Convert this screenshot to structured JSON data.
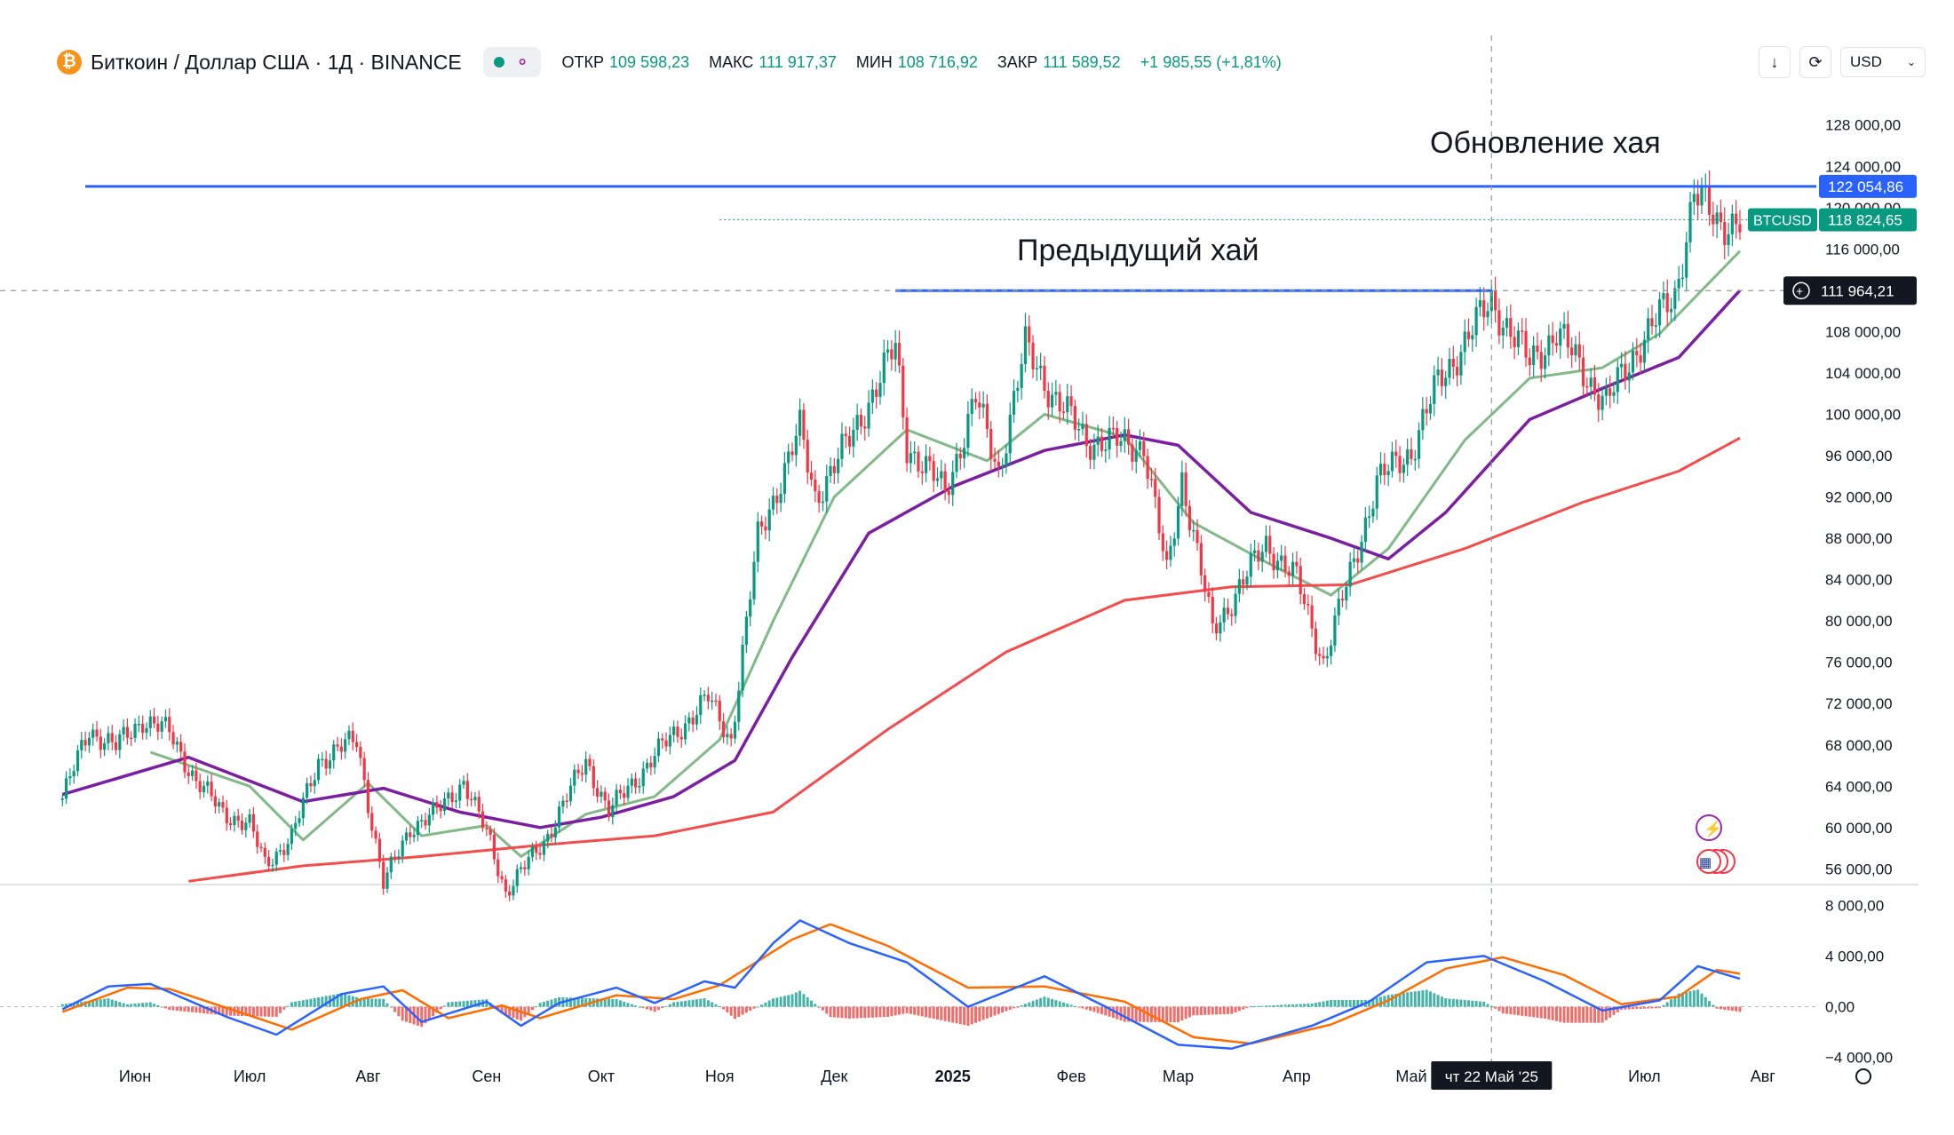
{
  "header": {
    "coin_glyph": "₿",
    "symbol_title": "Биткоин / Доллар США · 1Д · BINANCE",
    "ohlc": [
      {
        "label": "ОТКР",
        "value": "109 598,23"
      },
      {
        "label": "МАКС",
        "value": "111 917,37"
      },
      {
        "label": "МИН",
        "value": "108 716,92"
      },
      {
        "label": "ЗАКР",
        "value": "111 589,52"
      },
      {
        "label": "",
        "value": "+1 985,55 (+1,81%)"
      }
    ],
    "currency": "USD"
  },
  "icons": {
    "coin": "bitcoin-icon",
    "share": "share-icon",
    "download": "arrow-down-icon",
    "fullscreen": "fullscreen-icon",
    "settings": "gear-icon"
  },
  "colors": {
    "up": "#089981",
    "down": "#f23645",
    "ema_fast": "#81b988",
    "ema_mid": "#7b1fa2",
    "ema_slow": "#f44b4b",
    "level_line": "#2962ff",
    "macd_line": "#2962ff",
    "signal_line": "#ff6d00"
  },
  "chart_data": {
    "type": "candlestick",
    "title": "Биткоин / Доллар США · 1Д · BINANCE",
    "annotations": [
      {
        "text": "Обновление хая",
        "level": 122054.86
      },
      {
        "text": "Предыдущий хай",
        "level": 111964.21
      }
    ],
    "price_axis": {
      "ticks": [
        56000,
        60000,
        64000,
        68000,
        72000,
        76000,
        80000,
        84000,
        88000,
        92000,
        96000,
        100000,
        104000,
        108000,
        116000,
        120000,
        124000,
        128000
      ],
      "tick_labels": [
        "56 000,00",
        "60 000,00",
        "64 000,00",
        "68 000,00",
        "72 000,00",
        "76 000,00",
        "80 000,00",
        "84 000,00",
        "88 000,00",
        "92 000,00",
        "96 000,00",
        "100 000,00",
        "104 000,00",
        "108 000,00",
        "116 000,00",
        "120 000,00",
        "124 000,00",
        "128 000,00"
      ],
      "range": [
        55000,
        131500
      ]
    },
    "price_badges": [
      {
        "label": "",
        "value": "122 054,86",
        "level": 122054.86
      },
      {
        "label": "BTCUSD",
        "value": "118 824,65",
        "level": 118824.65
      },
      {
        "label": "",
        "value": "111 964,21",
        "level": 111964.21
      }
    ],
    "time_axis": {
      "labels": [
        "Июн",
        "Июл",
        "Авг",
        "Сен",
        "Окт",
        "Ноя",
        "Дек",
        "2025",
        "Фев",
        "Мар",
        "Апр",
        "Май",
        "Июл",
        "Авг"
      ],
      "dates": [
        "2024-06-01",
        "2024-07-01",
        "2024-08-01",
        "2024-09-01",
        "2024-10-01",
        "2024-11-01",
        "2024-12-01",
        "2025-01-01",
        "2025-02-01",
        "2025-03-01",
        "2025-04-01",
        "2025-05-01",
        "2025-07-01",
        "2025-08-01"
      ],
      "range": [
        "2024-05-12",
        "2025-08-15"
      ],
      "crosshair_label": "чт 22 Май '25",
      "crosshair_date": "2025-05-22"
    },
    "close_series": [
      [
        "2024-05-13",
        62800
      ],
      [
        "2024-05-20",
        69500
      ],
      [
        "2024-05-27",
        67800
      ],
      [
        "2024-06-03",
        70500
      ],
      [
        "2024-06-10",
        69200
      ],
      [
        "2024-06-17",
        64500
      ],
      [
        "2024-06-24",
        61500
      ],
      [
        "2024-07-01",
        60200
      ],
      [
        "2024-07-05",
        56500
      ],
      [
        "2024-07-12",
        59000
      ],
      [
        "2024-07-19",
        66500
      ],
      [
        "2024-07-29",
        68500
      ],
      [
        "2024-08-05",
        54500
      ],
      [
        "2024-08-12",
        60000
      ],
      [
        "2024-08-19",
        61500
      ],
      [
        "2024-08-26",
        64500
      ],
      [
        "2024-09-02",
        58500
      ],
      [
        "2024-09-06",
        53800
      ],
      [
        "2024-09-16",
        58600
      ],
      [
        "2024-09-27",
        66500
      ],
      [
        "2024-10-03",
        61500
      ],
      [
        "2024-10-15",
        67000
      ],
      [
        "2024-10-29",
        72500
      ],
      [
        "2024-11-04",
        68500
      ],
      [
        "2024-11-11",
        88000
      ],
      [
        "2024-11-22",
        98500
      ],
      [
        "2024-11-26",
        92000
      ],
      [
        "2024-12-05",
        97500
      ],
      [
        "2024-12-17",
        106500
      ],
      [
        "2024-12-20",
        97000
      ],
      [
        "2024-12-30",
        92500
      ],
      [
        "2025-01-07",
        101500
      ],
      [
        "2025-01-13",
        94500
      ],
      [
        "2025-01-20",
        106500
      ],
      [
        "2025-01-27",
        102000
      ],
      [
        "2025-02-05",
        97500
      ],
      [
        "2025-02-20",
        97000
      ],
      [
        "2025-02-26",
        84500
      ],
      [
        "2025-03-02",
        94000
      ],
      [
        "2025-03-10",
        79000
      ],
      [
        "2025-03-24",
        87500
      ],
      [
        "2025-04-01",
        84000
      ],
      [
        "2025-04-08",
        76000
      ],
      [
        "2025-04-15",
        84500
      ],
      [
        "2025-04-22",
        93500
      ],
      [
        "2025-05-01",
        96500
      ],
      [
        "2025-05-08",
        103000
      ],
      [
        "2025-05-22",
        111000
      ],
      [
        "2025-06-01",
        105000
      ],
      [
        "2025-06-08",
        108000
      ],
      [
        "2025-06-21",
        101000
      ],
      [
        "2025-06-30",
        107000
      ],
      [
        "2025-07-09",
        111500
      ],
      [
        "2025-07-14",
        121500
      ],
      [
        "2025-07-20",
        118500
      ],
      [
        "2025-07-26",
        118824
      ]
    ],
    "moving_averages": [
      {
        "kind": "ema_fast",
        "points": [
          [
            "2024-06-05",
            67300
          ],
          [
            "2024-07-01",
            64000
          ],
          [
            "2024-07-15",
            58800
          ],
          [
            "2024-08-01",
            64300
          ],
          [
            "2024-08-15",
            59200
          ],
          [
            "2024-09-01",
            60200
          ],
          [
            "2024-09-10",
            57200
          ],
          [
            "2024-09-27",
            61300
          ],
          [
            "2024-10-15",
            63000
          ],
          [
            "2024-11-01",
            68500
          ],
          [
            "2024-11-15",
            80000
          ],
          [
            "2024-12-01",
            92000
          ],
          [
            "2024-12-20",
            98500
          ],
          [
            "2025-01-10",
            95500
          ],
          [
            "2025-01-25",
            100000
          ],
          [
            "2025-02-15",
            97800
          ],
          [
            "2025-03-05",
            89500
          ],
          [
            "2025-03-25",
            85500
          ],
          [
            "2025-04-10",
            82500
          ],
          [
            "2025-04-25",
            87000
          ],
          [
            "2025-05-15",
            97500
          ],
          [
            "2025-06-01",
            103500
          ],
          [
            "2025-06-20",
            104500
          ],
          [
            "2025-07-05",
            107800
          ],
          [
            "2025-07-26",
            115800
          ]
        ]
      },
      {
        "kind": "ema_mid",
        "points": [
          [
            "2024-05-13",
            63200
          ],
          [
            "2024-06-15",
            66800
          ],
          [
            "2024-07-15",
            62500
          ],
          [
            "2024-08-05",
            63800
          ],
          [
            "2024-08-25",
            61500
          ],
          [
            "2024-09-15",
            60000
          ],
          [
            "2024-10-01",
            61000
          ],
          [
            "2024-10-20",
            63000
          ],
          [
            "2024-11-05",
            66500
          ],
          [
            "2024-11-20",
            76500
          ],
          [
            "2024-12-10",
            88500
          ],
          [
            "2025-01-01",
            93000
          ],
          [
            "2025-01-25",
            96500
          ],
          [
            "2025-02-15",
            98000
          ],
          [
            "2025-03-01",
            97000
          ],
          [
            "2025-03-20",
            90500
          ],
          [
            "2025-04-10",
            88000
          ],
          [
            "2025-04-25",
            86000
          ],
          [
            "2025-05-10",
            90500
          ],
          [
            "2025-06-01",
            99500
          ],
          [
            "2025-06-20",
            102500
          ],
          [
            "2025-07-10",
            105500
          ],
          [
            "2025-07-26",
            112000
          ]
        ]
      },
      {
        "kind": "ema_slow",
        "points": [
          [
            "2024-06-15",
            54800
          ],
          [
            "2024-07-15",
            56300
          ],
          [
            "2024-08-15",
            57200
          ],
          [
            "2024-09-15",
            58300
          ],
          [
            "2024-10-15",
            59200
          ],
          [
            "2024-11-15",
            61500
          ],
          [
            "2024-12-15",
            69500
          ],
          [
            "2025-01-15",
            77000
          ],
          [
            "2025-02-15",
            82000
          ],
          [
            "2025-03-15",
            83300
          ],
          [
            "2025-04-15",
            83500
          ],
          [
            "2025-05-15",
            87000
          ],
          [
            "2025-06-15",
            91500
          ],
          [
            "2025-07-10",
            94500
          ],
          [
            "2025-07-26",
            97700
          ]
        ]
      }
    ],
    "macd": {
      "ticks": [
        -4000,
        0,
        4000,
        8000
      ],
      "tick_labels": [
        "−4 000,00",
        "0,00",
        "4 000,00",
        "8 000,00"
      ],
      "range": [
        -5000,
        9000
      ],
      "macd_points": [
        [
          "2024-05-13",
          -200
        ],
        [
          "2024-05-25",
          1600
        ],
        [
          "2024-06-05",
          1800
        ],
        [
          "2024-06-25",
          -800
        ],
        [
          "2024-07-08",
          -2200
        ],
        [
          "2024-07-25",
          1000
        ],
        [
          "2024-08-05",
          1600
        ],
        [
          "2024-08-15",
          -1200
        ],
        [
          "2024-09-01",
          400
        ],
        [
          "2024-09-10",
          -1500
        ],
        [
          "2024-09-20",
          300
        ],
        [
          "2024-10-05",
          1500
        ],
        [
          "2024-10-15",
          300
        ],
        [
          "2024-10-28",
          2000
        ],
        [
          "2024-11-05",
          1500
        ],
        [
          "2024-11-15",
          5000
        ],
        [
          "2024-11-22",
          6800
        ],
        [
          "2024-12-05",
          5000
        ],
        [
          "2024-12-20",
          3500
        ],
        [
          "2025-01-05",
          0
        ],
        [
          "2025-01-25",
          2400
        ],
        [
          "2025-02-10",
          0
        ],
        [
          "2025-03-01",
          -3000
        ],
        [
          "2025-03-15",
          -3300
        ],
        [
          "2025-04-05",
          -1500
        ],
        [
          "2025-04-20",
          400
        ],
        [
          "2025-05-05",
          3500
        ],
        [
          "2025-05-20",
          4000
        ],
        [
          "2025-06-05",
          2000
        ],
        [
          "2025-06-20",
          -300
        ],
        [
          "2025-07-05",
          500
        ],
        [
          "2025-07-15",
          3200
        ],
        [
          "2025-07-26",
          2200
        ]
      ],
      "signal_points": [
        [
          "2024-05-13",
          -400
        ],
        [
          "2024-05-30",
          1500
        ],
        [
          "2024-06-10",
          1400
        ],
        [
          "2024-06-30",
          -600
        ],
        [
          "2024-07-12",
          -1800
        ],
        [
          "2024-07-30",
          600
        ],
        [
          "2024-08-10",
          1300
        ],
        [
          "2024-08-22",
          -900
        ],
        [
          "2024-09-05",
          100
        ],
        [
          "2024-09-15",
          -900
        ],
        [
          "2024-10-05",
          900
        ],
        [
          "2024-10-20",
          600
        ],
        [
          "2024-11-01",
          1700
        ],
        [
          "2024-11-20",
          5300
        ],
        [
          "2024-11-30",
          6500
        ],
        [
          "2024-12-15",
          4800
        ],
        [
          "2025-01-05",
          1500
        ],
        [
          "2025-01-25",
          1600
        ],
        [
          "2025-02-15",
          400
        ],
        [
          "2025-03-05",
          -2400
        ],
        [
          "2025-03-20",
          -2900
        ],
        [
          "2025-04-10",
          -1400
        ],
        [
          "2025-04-25",
          500
        ],
        [
          "2025-05-10",
          3000
        ],
        [
          "2025-05-25",
          3900
        ],
        [
          "2025-06-10",
          2500
        ],
        [
          "2025-06-25",
          200
        ],
        [
          "2025-07-10",
          800
        ],
        [
          "2025-07-20",
          2900
        ],
        [
          "2025-07-26",
          2600
        ]
      ]
    },
    "grid": false
  }
}
